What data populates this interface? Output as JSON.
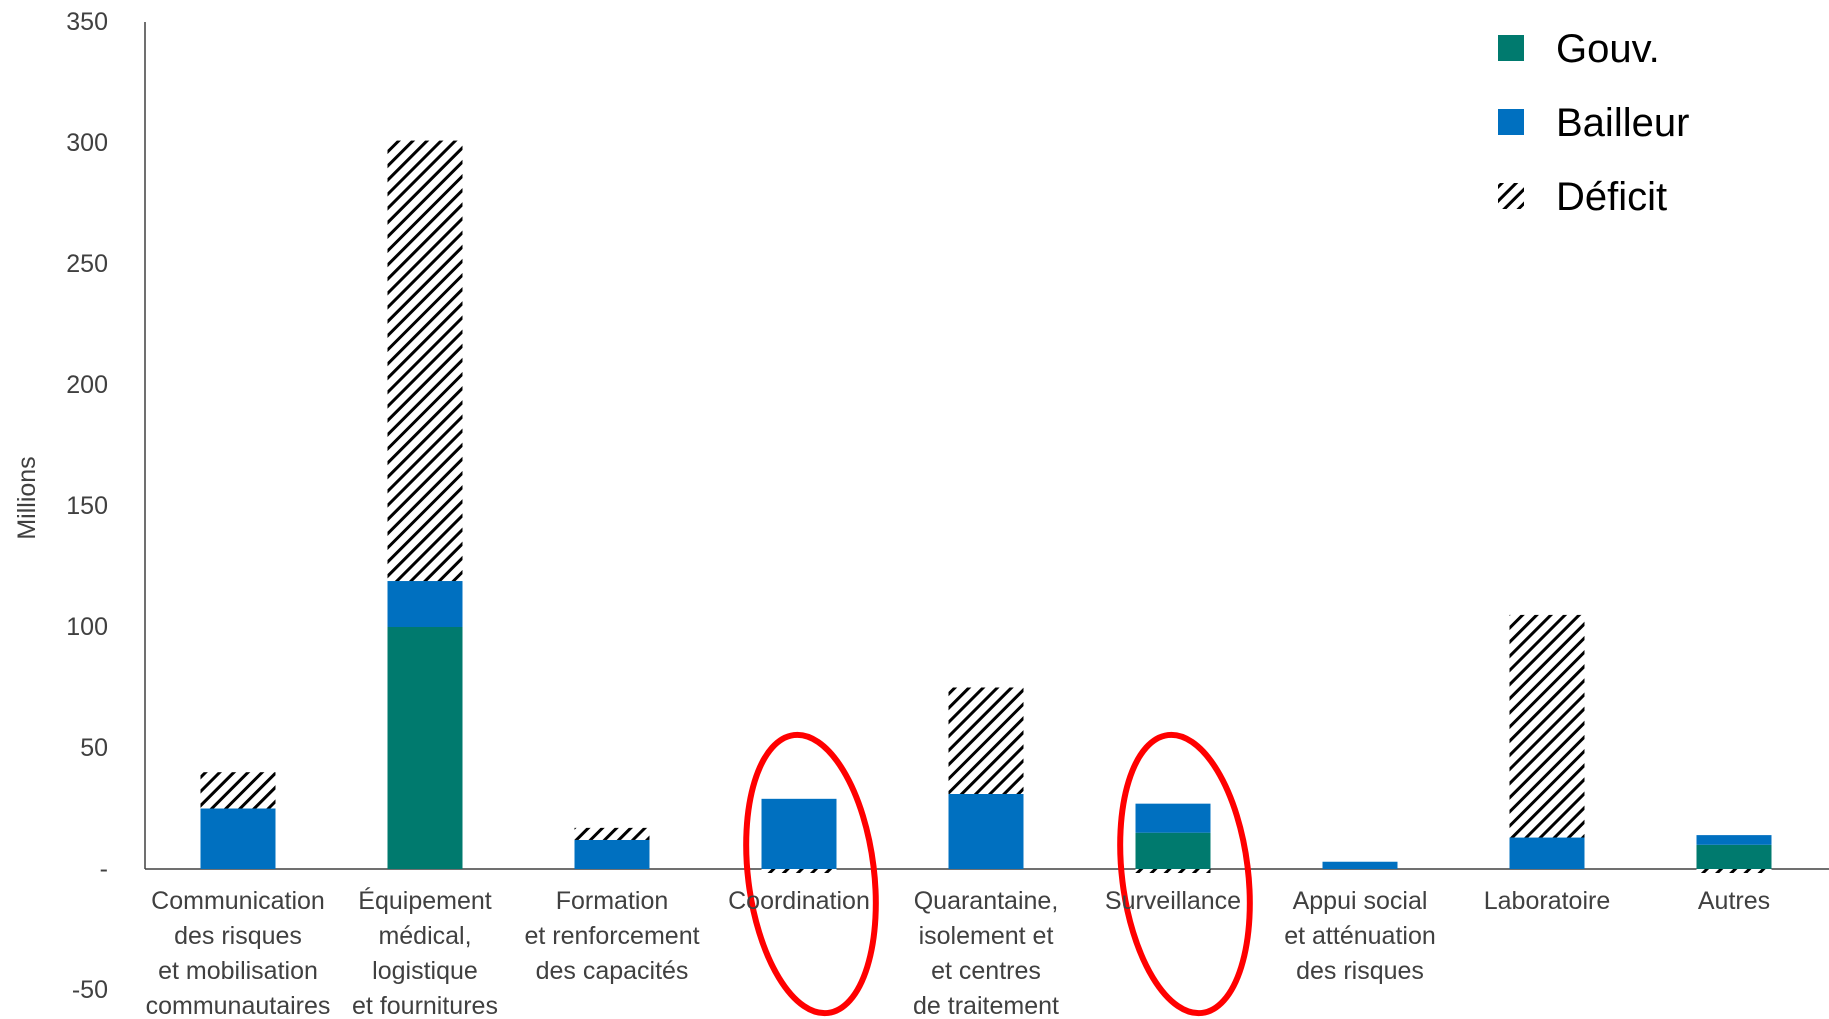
{
  "chart_data": {
    "type": "bar",
    "stacked": true,
    "ylabel": "Millions",
    "ylim": [
      -50,
      350
    ],
    "yticks": [
      {
        "value": 350,
        "label": "350"
      },
      {
        "value": 300,
        "label": "300"
      },
      {
        "value": 250,
        "label": "250"
      },
      {
        "value": 200,
        "label": "200"
      },
      {
        "value": 150,
        "label": "150"
      },
      {
        "value": 100,
        "label": "100"
      },
      {
        "value": 50,
        "label": "50"
      },
      {
        "value": 0,
        "label": "-"
      },
      {
        "value": -50,
        "label": "-50"
      }
    ],
    "categories": [
      "Communication des risques et mobilisation communautaires",
      "Équipement médical, logistique et fournitures",
      "Formation et renforcement des capacités",
      "Coordination",
      "Quarantaine, isolement et et centres de traitement",
      "Surveillance",
      "Appui social et atténuation des risques",
      "Laboratoire",
      "Autres"
    ],
    "category_lines": [
      [
        "Communication",
        "des risques",
        "et mobilisation",
        "communautaires"
      ],
      [
        "Équipement",
        "médical,",
        "logistique",
        "et fournitures"
      ],
      [
        "Formation",
        "et renforcement",
        "des capacités"
      ],
      [
        "Coordination"
      ],
      [
        "Quarantaine,",
        "isolement et",
        "et centres",
        "de traitement"
      ],
      [
        "Surveillance"
      ],
      [
        "Appui social",
        "et atténuation",
        "des risques"
      ],
      [
        "Laboratoire"
      ],
      [
        "Autres"
      ]
    ],
    "series": [
      {
        "name": "Gouv.",
        "color": "#007A6E",
        "values": [
          0,
          100,
          0,
          0,
          0,
          15,
          0,
          0,
          10
        ]
      },
      {
        "name": "Bailleur",
        "color": "#0070C0",
        "values": [
          25,
          19,
          12,
          29,
          31,
          12,
          3,
          13,
          4
        ]
      },
      {
        "name": "Déficit",
        "pattern": "diagonal-hatch",
        "color": "#000000",
        "values": [
          15,
          182,
          5,
          -1,
          44,
          -1,
          0,
          92,
          -1
        ]
      }
    ],
    "legend_position": "top-right",
    "grid": false,
    "highlighted_categories": [
      "Coordination",
      "Surveillance"
    ],
    "highlight_color": "#FF0000"
  }
}
